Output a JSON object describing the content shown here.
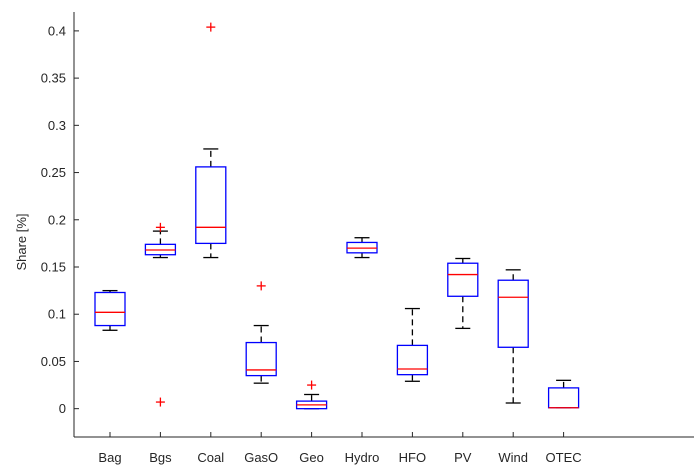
{
  "chart_data": {
    "type": "boxplot",
    "title": "",
    "xlabel": "",
    "ylabel": "Share [%]",
    "ylim": [
      -0.03,
      0.42
    ],
    "yticks": [
      0,
      0.05,
      0.1,
      0.15,
      0.2,
      0.25,
      0.3,
      0.35,
      0.4
    ],
    "ytick_labels": [
      "0",
      "0.05",
      "0.1",
      "0.15",
      "0.2",
      "0.25",
      "0.3",
      "0.35",
      "0.4"
    ],
    "grid": false,
    "legend": "none",
    "colors": {
      "box": "#0000ff",
      "median": "#ff0000",
      "whisker": "#000000",
      "outlier": "#ff0000",
      "axes": "#262626"
    },
    "categories": [
      "Bag",
      "Bgs",
      "Coal",
      "GasO",
      "Geo",
      "Hydro",
      "HFO",
      "PV",
      "Wind",
      "OTEC"
    ],
    "boxes": [
      {
        "name": "Bag",
        "whisker_low": 0.083,
        "q1": 0.088,
        "median": 0.102,
        "q3": 0.123,
        "whisker_high": 0.125,
        "outliers": []
      },
      {
        "name": "Bgs",
        "whisker_low": 0.16,
        "q1": 0.163,
        "median": 0.168,
        "q3": 0.174,
        "whisker_high": 0.188,
        "outliers": [
          0.192,
          0.007
        ]
      },
      {
        "name": "Coal",
        "whisker_low": 0.16,
        "q1": 0.175,
        "median": 0.192,
        "q3": 0.256,
        "whisker_high": 0.275,
        "outliers": [
          0.404
        ]
      },
      {
        "name": "GasO",
        "whisker_low": 0.027,
        "q1": 0.035,
        "median": 0.041,
        "q3": 0.07,
        "whisker_high": 0.088,
        "outliers": [
          0.13
        ]
      },
      {
        "name": "Geo",
        "whisker_low": 0.0,
        "q1": 0.0,
        "median": 0.004,
        "q3": 0.008,
        "whisker_high": 0.015,
        "outliers": [
          0.025
        ]
      },
      {
        "name": "Hydro",
        "whisker_low": 0.16,
        "q1": 0.165,
        "median": 0.17,
        "q3": 0.176,
        "whisker_high": 0.181,
        "outliers": []
      },
      {
        "name": "HFO",
        "whisker_low": 0.029,
        "q1": 0.036,
        "median": 0.042,
        "q3": 0.067,
        "whisker_high": 0.106,
        "outliers": []
      },
      {
        "name": "PV",
        "whisker_low": 0.085,
        "q1": 0.119,
        "median": 0.142,
        "q3": 0.154,
        "whisker_high": 0.159,
        "outliers": []
      },
      {
        "name": "Wind",
        "whisker_low": 0.006,
        "q1": 0.065,
        "median": 0.118,
        "q3": 0.136,
        "whisker_high": 0.147,
        "outliers": []
      },
      {
        "name": "OTEC",
        "whisker_low": 0.001,
        "q1": 0.001,
        "median": 0.001,
        "q3": 0.022,
        "whisker_high": 0.03,
        "outliers": []
      }
    ]
  }
}
